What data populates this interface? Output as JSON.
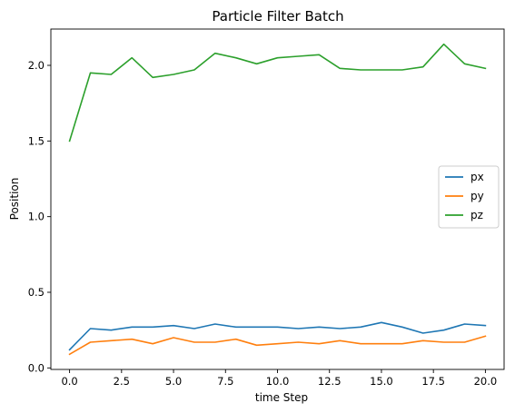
{
  "chart_data": {
    "type": "line",
    "title": "Particle Filter Batch",
    "xlabel": "time Step",
    "ylabel": "Position",
    "xlim": [
      -0.9,
      20.9
    ],
    "ylim": [
      -0.01,
      2.24
    ],
    "xticks": [
      0,
      2.5,
      5,
      7.5,
      10,
      12.5,
      15,
      17.5,
      20
    ],
    "xtick_labels": [
      "0.0",
      "2.5",
      "5.0",
      "7.5",
      "10.0",
      "12.5",
      "15.0",
      "17.5",
      "20.0"
    ],
    "yticks": [
      0,
      0.5,
      1,
      1.5,
      2
    ],
    "ytick_labels": [
      "0.0",
      "0.5",
      "1.0",
      "1.5",
      "2.0"
    ],
    "grid": false,
    "legend_position": "right",
    "x": [
      0,
      1,
      2,
      3,
      4,
      5,
      6,
      7,
      8,
      9,
      10,
      11,
      12,
      13,
      14,
      15,
      16,
      17,
      18,
      19,
      20
    ],
    "series": [
      {
        "name": "px",
        "color": "#1f77b4",
        "values": [
          0.12,
          0.26,
          0.25,
          0.27,
          0.27,
          0.28,
          0.26,
          0.29,
          0.27,
          0.27,
          0.27,
          0.26,
          0.27,
          0.26,
          0.27,
          0.3,
          0.27,
          0.23,
          0.25,
          0.29,
          0.28
        ]
      },
      {
        "name": "py",
        "color": "#ff7f0e",
        "values": [
          0.09,
          0.17,
          0.18,
          0.19,
          0.16,
          0.2,
          0.17,
          0.17,
          0.19,
          0.15,
          0.16,
          0.17,
          0.16,
          0.18,
          0.16,
          0.16,
          0.16,
          0.18,
          0.17,
          0.17,
          0.21
        ]
      },
      {
        "name": "pz",
        "color": "#2ca02c",
        "values": [
          1.5,
          1.95,
          1.94,
          2.05,
          1.92,
          1.94,
          1.97,
          2.08,
          2.05,
          2.01,
          2.05,
          2.06,
          2.07,
          1.98,
          1.97,
          1.97,
          1.97,
          1.99,
          2.14,
          2.01,
          1.98
        ]
      }
    ]
  }
}
